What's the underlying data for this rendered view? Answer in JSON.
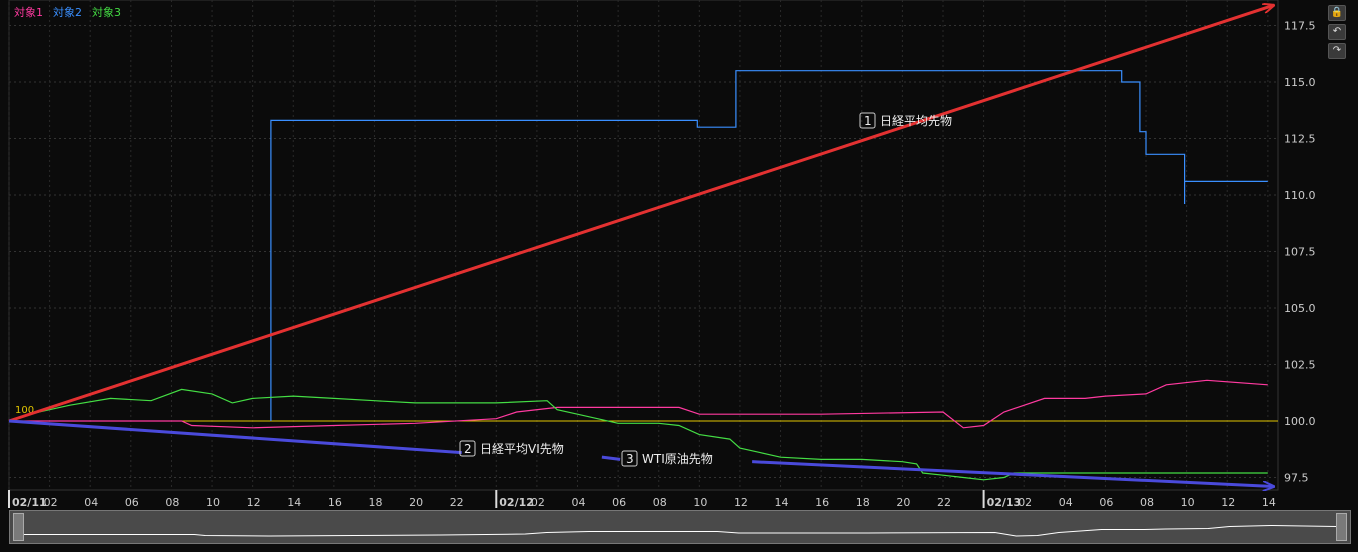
{
  "legend": [
    {
      "label": "対象1",
      "color": "#ff3aa0"
    },
    {
      "label": "対象2",
      "color": "#3a8fff"
    },
    {
      "label": "対象3",
      "color": "#44dd44"
    }
  ],
  "baseline_label": "100",
  "annotations": [
    {
      "num": "1",
      "text": "日経平均先物"
    },
    {
      "num": "2",
      "text": "日経平均VI先物"
    },
    {
      "num": "3",
      "text": "WTI原油先物"
    }
  ],
  "buttons": {
    "lock": "🔒",
    "undo": "↶",
    "redo": "↷"
  },
  "chart_data": {
    "type": "line",
    "ylim": [
      97.0,
      118.5
    ],
    "y_ticks": [
      "97.5",
      "100.0",
      "102.5",
      "105.0",
      "107.5",
      "110.0",
      "112.5",
      "115.0",
      "117.5"
    ],
    "x_ticks": [
      "02/11",
      "02",
      "04",
      "06",
      "08",
      "10",
      "12",
      "14",
      "16",
      "18",
      "20",
      "22",
      "02/12",
      "02",
      "04",
      "06",
      "08",
      "10",
      "12",
      "14",
      "16",
      "18",
      "20",
      "22",
      "02/13",
      "02",
      "04",
      "06",
      "08",
      "10",
      "12",
      "14"
    ],
    "x_range_hours": [
      0,
      62.5
    ],
    "baseline": 100,
    "series": [
      {
        "name": "対象1",
        "color": "#ff3aa0",
        "points": [
          [
            0,
            100
          ],
          [
            8.5,
            100
          ],
          [
            9,
            99.8
          ],
          [
            12,
            99.7
          ],
          [
            16,
            99.8
          ],
          [
            20,
            99.9
          ],
          [
            24,
            100.1
          ],
          [
            25,
            100.4
          ],
          [
            27,
            100.6
          ],
          [
            33,
            100.6
          ],
          [
            34,
            100.3
          ],
          [
            40,
            100.3
          ],
          [
            46,
            100.4
          ],
          [
            47,
            99.7
          ],
          [
            48,
            99.8
          ],
          [
            49,
            100.4
          ],
          [
            51,
            101
          ],
          [
            53,
            101
          ],
          [
            54,
            101.1
          ],
          [
            56,
            101.2
          ],
          [
            57,
            101.6
          ],
          [
            59,
            101.8
          ],
          [
            62,
            101.6
          ]
        ]
      },
      {
        "name": "対象2",
        "color": "#3a8fff",
        "points": [
          [
            12.9,
            100
          ],
          [
            12.9,
            113.3
          ],
          [
            33.9,
            113.3
          ],
          [
            33.9,
            113.0
          ],
          [
            35.8,
            113.0
          ],
          [
            35.8,
            115.5
          ],
          [
            54.8,
            115.5
          ],
          [
            54.8,
            115.0
          ],
          [
            55.7,
            115.0
          ],
          [
            55.7,
            112.8
          ],
          [
            56,
            112.8
          ],
          [
            56,
            111.8
          ],
          [
            57.9,
            111.8
          ],
          [
            57.9,
            109.6
          ],
          [
            57.9,
            110.6
          ],
          [
            62,
            110.6
          ]
        ]
      },
      {
        "name": "対象3",
        "color": "#44dd44",
        "points": [
          [
            0,
            100
          ],
          [
            1,
            100.3
          ],
          [
            3,
            100.7
          ],
          [
            5,
            101
          ],
          [
            7,
            100.9
          ],
          [
            8.5,
            101.4
          ],
          [
            10,
            101.2
          ],
          [
            11,
            100.8
          ],
          [
            12,
            101
          ],
          [
            14,
            101.1
          ],
          [
            16,
            101
          ],
          [
            18,
            100.9
          ],
          [
            20,
            100.8
          ],
          [
            24,
            100.8
          ],
          [
            26.5,
            100.9
          ],
          [
            27,
            100.5
          ],
          [
            28,
            100.3
          ],
          [
            30,
            99.9
          ],
          [
            32,
            99.9
          ],
          [
            33,
            99.8
          ],
          [
            34,
            99.4
          ],
          [
            35.5,
            99.2
          ],
          [
            36,
            98.8
          ],
          [
            37,
            98.6
          ],
          [
            38,
            98.4
          ],
          [
            40,
            98.3
          ],
          [
            42,
            98.3
          ],
          [
            44,
            98.2
          ],
          [
            44.7,
            98.1
          ],
          [
            45,
            97.7
          ],
          [
            46,
            97.6
          ],
          [
            47,
            97.5
          ],
          [
            48,
            97.4
          ],
          [
            49,
            97.5
          ],
          [
            49.5,
            97.7
          ],
          [
            62,
            97.7
          ]
        ]
      }
    ],
    "trend_arrows": [
      {
        "color": "#e33131",
        "from": [
          0,
          100
        ],
        "to": [
          62.3,
          118.4
        ]
      },
      {
        "color": "#4a4adb",
        "from": [
          0,
          100
        ],
        "to": [
          22.3,
          98.6
        ]
      },
      {
        "color": "#4a4adb",
        "from": [
          29.2,
          98.4
        ],
        "to": [
          30.1,
          98.3
        ]
      },
      {
        "color": "#4a4adb",
        "from": [
          36.6,
          98.2
        ],
        "to": [
          62.3,
          97.1
        ]
      }
    ]
  }
}
